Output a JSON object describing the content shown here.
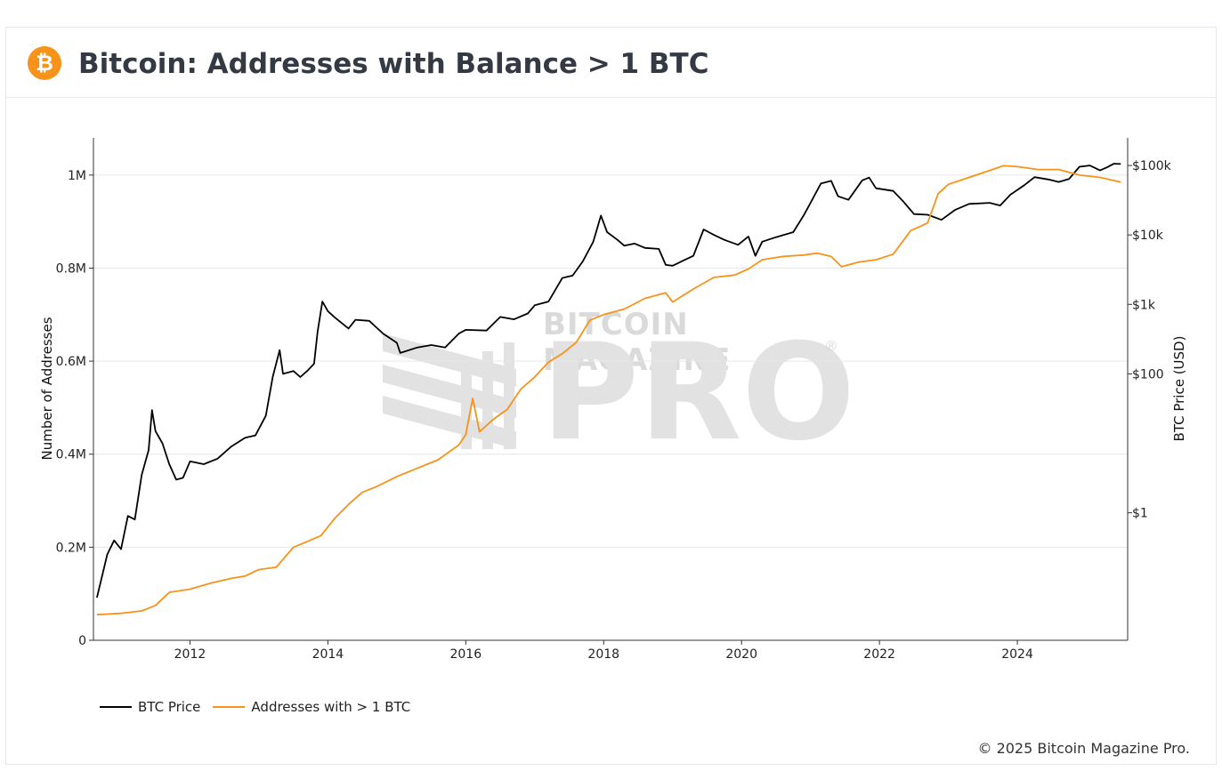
{
  "header": {
    "logo_glyph": "₿",
    "title": "Bitcoin: Addresses with Balance > 1 BTC"
  },
  "watermark": {
    "top_text": "BITCOIN MAGAZINE",
    "big_text": "PRO",
    "mark": "®"
  },
  "copyright": "© 2025 Bitcoin Magazine Pro.",
  "colors": {
    "price_line": "#000000",
    "addresses_line": "#f7931a",
    "grid": "#e6e6e6",
    "logo": "#f7931a"
  },
  "chart_data": {
    "type": "line",
    "title": "",
    "xlabel": "",
    "y_left_label": "Number of Addresses",
    "y_right_label": "BTC Price (USD)",
    "x_range": [
      2010.6,
      2025.6
    ],
    "x_ticks": [
      2012,
      2014,
      2016,
      2018,
      2020,
      2022,
      2024
    ],
    "y_left_range": [
      0,
      1080000
    ],
    "y_left_ticks": [
      {
        "value": 0,
        "label": "0"
      },
      {
        "value": 200000,
        "label": "0.2M"
      },
      {
        "value": 400000,
        "label": "0.4M"
      },
      {
        "value": 600000,
        "label": "0.6M"
      },
      {
        "value": 800000,
        "label": "0.8M"
      },
      {
        "value": 1000000,
        "label": "1M"
      }
    ],
    "y_right_scale": "log",
    "y_right_range": [
      0.0146,
      250000
    ],
    "y_right_ticks": [
      {
        "value": 1,
        "label": "$1"
      },
      {
        "value": 100,
        "label": "$100"
      },
      {
        "value": 1000,
        "label": "$1k"
      },
      {
        "value": 10000,
        "label": "$10k"
      },
      {
        "value": 100000,
        "label": "$100k"
      }
    ],
    "grid": true,
    "legend_position": "bottom-left",
    "series": [
      {
        "name": "BTC Price",
        "axis": "right",
        "color": "#000000",
        "points": [
          [
            2010.65,
            0.06
          ],
          [
            2010.8,
            0.25
          ],
          [
            2010.9,
            0.4
          ],
          [
            2011.0,
            0.3
          ],
          [
            2011.1,
            0.9
          ],
          [
            2011.2,
            0.8
          ],
          [
            2011.3,
            3.5
          ],
          [
            2011.4,
            8
          ],
          [
            2011.45,
            30
          ],
          [
            2011.5,
            15
          ],
          [
            2011.6,
            10
          ],
          [
            2011.7,
            5
          ],
          [
            2011.8,
            3
          ],
          [
            2011.9,
            3.2
          ],
          [
            2012.0,
            5.5
          ],
          [
            2012.2,
            5
          ],
          [
            2012.4,
            6
          ],
          [
            2012.6,
            9
          ],
          [
            2012.8,
            12
          ],
          [
            2012.95,
            13
          ],
          [
            2013.1,
            25
          ],
          [
            2013.2,
            90
          ],
          [
            2013.3,
            220
          ],
          [
            2013.35,
            100
          ],
          [
            2013.5,
            110
          ],
          [
            2013.6,
            90
          ],
          [
            2013.7,
            110
          ],
          [
            2013.8,
            140
          ],
          [
            2013.85,
            400
          ],
          [
            2013.92,
            1100
          ],
          [
            2014.0,
            800
          ],
          [
            2014.1,
            650
          ],
          [
            2014.3,
            450
          ],
          [
            2014.4,
            600
          ],
          [
            2014.6,
            580
          ],
          [
            2014.8,
            380
          ],
          [
            2015.0,
            280
          ],
          [
            2015.05,
            200
          ],
          [
            2015.3,
            240
          ],
          [
            2015.5,
            260
          ],
          [
            2015.7,
            240
          ],
          [
            2015.9,
            380
          ],
          [
            2016.0,
            430
          ],
          [
            2016.3,
            420
          ],
          [
            2016.5,
            660
          ],
          [
            2016.7,
            610
          ],
          [
            2016.9,
            740
          ],
          [
            2017.0,
            970
          ],
          [
            2017.2,
            1100
          ],
          [
            2017.4,
            2400
          ],
          [
            2017.55,
            2600
          ],
          [
            2017.7,
            4200
          ],
          [
            2017.85,
            8000
          ],
          [
            2017.96,
            19000
          ],
          [
            2018.05,
            11000
          ],
          [
            2018.2,
            8500
          ],
          [
            2018.3,
            7000
          ],
          [
            2018.45,
            7500
          ],
          [
            2018.6,
            6500
          ],
          [
            2018.8,
            6300
          ],
          [
            2018.9,
            3700
          ],
          [
            2019.0,
            3600
          ],
          [
            2019.3,
            5000
          ],
          [
            2019.45,
            12000
          ],
          [
            2019.6,
            10000
          ],
          [
            2019.75,
            8500
          ],
          [
            2019.95,
            7200
          ],
          [
            2020.1,
            9500
          ],
          [
            2020.2,
            5000
          ],
          [
            2020.3,
            8000
          ],
          [
            2020.5,
            9300
          ],
          [
            2020.75,
            11000
          ],
          [
            2020.9,
            19000
          ],
          [
            2021.0,
            29000
          ],
          [
            2021.15,
            55000
          ],
          [
            2021.3,
            60000
          ],
          [
            2021.4,
            36000
          ],
          [
            2021.55,
            32000
          ],
          [
            2021.75,
            61000
          ],
          [
            2021.85,
            67000
          ],
          [
            2021.95,
            47000
          ],
          [
            2022.2,
            43000
          ],
          [
            2022.35,
            30000
          ],
          [
            2022.5,
            20000
          ],
          [
            2022.7,
            19500
          ],
          [
            2022.9,
            16500
          ],
          [
            2023.1,
            23000
          ],
          [
            2023.3,
            28000
          ],
          [
            2023.6,
            29000
          ],
          [
            2023.75,
            26500
          ],
          [
            2023.9,
            38000
          ],
          [
            2024.1,
            52000
          ],
          [
            2024.25,
            68000
          ],
          [
            2024.45,
            63000
          ],
          [
            2024.6,
            58000
          ],
          [
            2024.75,
            64000
          ],
          [
            2024.9,
            96000
          ],
          [
            2025.05,
            100000
          ],
          [
            2025.2,
            85000
          ],
          [
            2025.3,
            94000
          ],
          [
            2025.4,
            106000
          ],
          [
            2025.5,
            105000
          ]
        ]
      },
      {
        "name": "Addresses with > 1 BTC",
        "axis": "left",
        "color": "#f7931a",
        "points": [
          [
            2010.65,
            55000
          ],
          [
            2011.0,
            58000
          ],
          [
            2011.3,
            63000
          ],
          [
            2011.5,
            75000
          ],
          [
            2011.7,
            103000
          ],
          [
            2012.0,
            110000
          ],
          [
            2012.3,
            123000
          ],
          [
            2012.6,
            133000
          ],
          [
            2012.8,
            138000
          ],
          [
            2013.0,
            152000
          ],
          [
            2013.25,
            157000
          ],
          [
            2013.5,
            200000
          ],
          [
            2013.7,
            212000
          ],
          [
            2013.9,
            225000
          ],
          [
            2014.1,
            262000
          ],
          [
            2014.3,
            292000
          ],
          [
            2014.5,
            318000
          ],
          [
            2014.7,
            330000
          ],
          [
            2015.0,
            352000
          ],
          [
            2015.3,
            370000
          ],
          [
            2015.6,
            388000
          ],
          [
            2015.9,
            420000
          ],
          [
            2016.0,
            442000
          ],
          [
            2016.1,
            520000
          ],
          [
            2016.2,
            448000
          ],
          [
            2016.4,
            475000
          ],
          [
            2016.6,
            496000
          ],
          [
            2016.8,
            540000
          ],
          [
            2017.0,
            566000
          ],
          [
            2017.2,
            598000
          ],
          [
            2017.4,
            616000
          ],
          [
            2017.6,
            640000
          ],
          [
            2017.8,
            688000
          ],
          [
            2018.0,
            700000
          ],
          [
            2018.3,
            712000
          ],
          [
            2018.6,
            735000
          ],
          [
            2018.9,
            747000
          ],
          [
            2019.0,
            727000
          ],
          [
            2019.3,
            755000
          ],
          [
            2019.6,
            780000
          ],
          [
            2019.9,
            785000
          ],
          [
            2020.1,
            798000
          ],
          [
            2020.3,
            818000
          ],
          [
            2020.6,
            825000
          ],
          [
            2020.9,
            828000
          ],
          [
            2021.1,
            832000
          ],
          [
            2021.3,
            825000
          ],
          [
            2021.45,
            803000
          ],
          [
            2021.7,
            813000
          ],
          [
            2021.95,
            818000
          ],
          [
            2022.2,
            830000
          ],
          [
            2022.45,
            880000
          ],
          [
            2022.7,
            897000
          ],
          [
            2022.85,
            960000
          ],
          [
            2023.0,
            980000
          ],
          [
            2023.3,
            995000
          ],
          [
            2023.6,
            1010000
          ],
          [
            2023.8,
            1020000
          ],
          [
            2024.0,
            1018000
          ],
          [
            2024.3,
            1012000
          ],
          [
            2024.6,
            1012000
          ],
          [
            2024.9,
            1000000
          ],
          [
            2025.2,
            995000
          ],
          [
            2025.5,
            985000
          ]
        ]
      }
    ]
  }
}
